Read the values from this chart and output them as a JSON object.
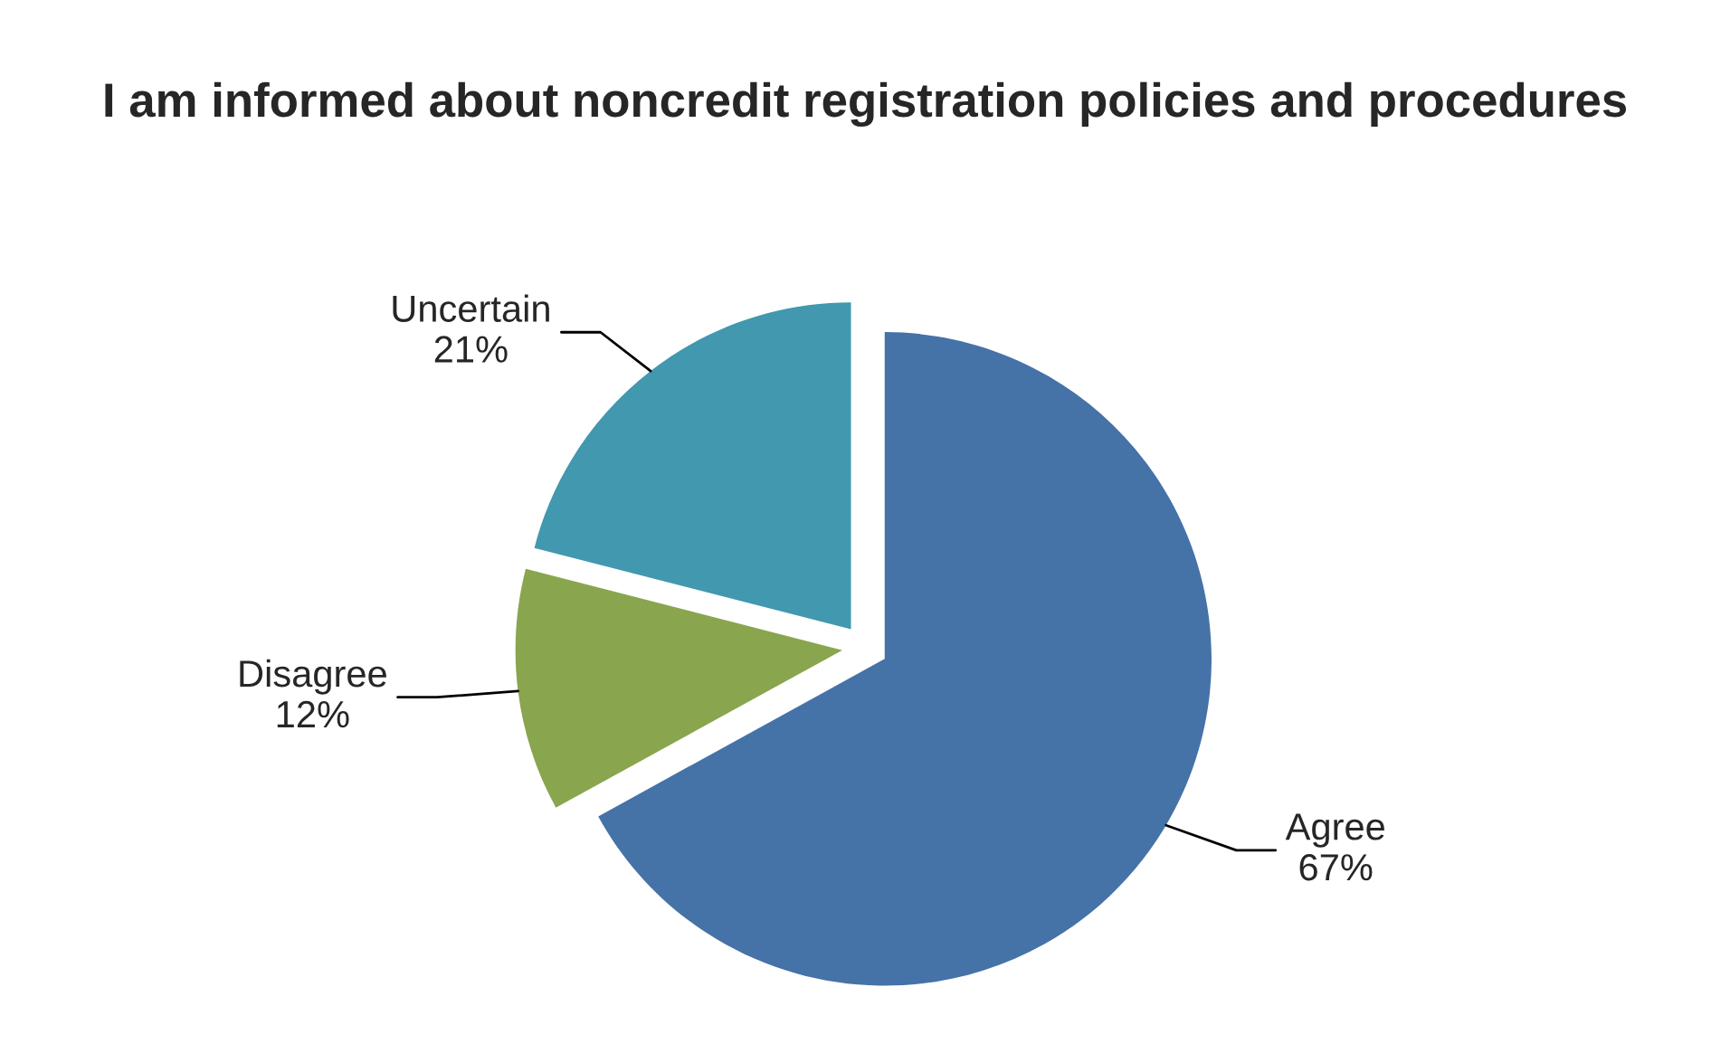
{
  "chart_data": {
    "type": "pie",
    "title": "I am informed about noncredit registration policies and procedures",
    "categories": [
      "Agree",
      "Disagree",
      "Uncertain"
    ],
    "values": [
      67,
      12,
      21
    ],
    "value_labels": [
      "67%",
      "12%",
      "21%"
    ],
    "colors": [
      "#4572a7",
      "#89a54e",
      "#4198af"
    ]
  }
}
